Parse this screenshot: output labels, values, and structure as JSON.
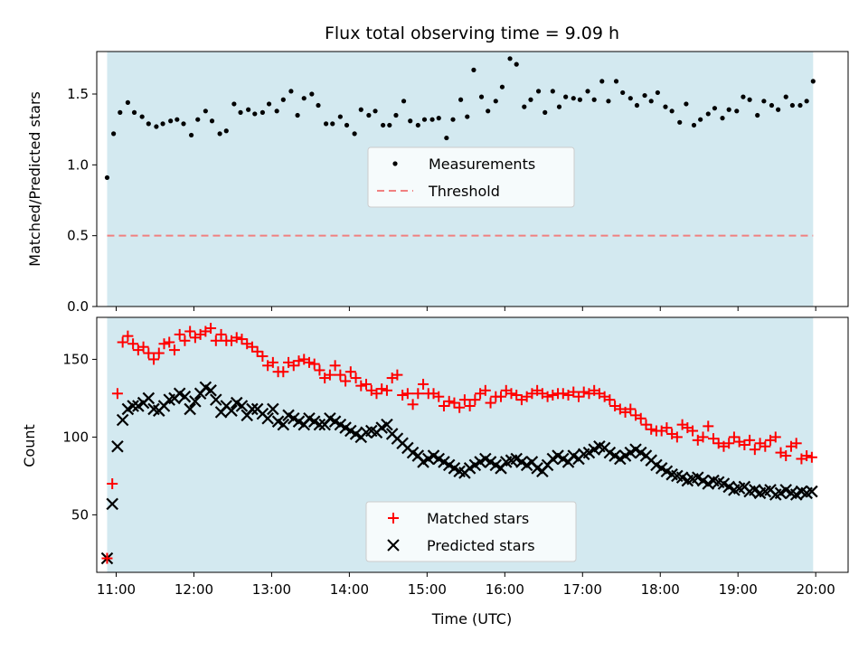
{
  "chart_data": [
    {
      "type": "scatter",
      "title": "Flux total observing time = 9.09 h",
      "ylabel": "Matched/Predicted stars",
      "xlim": [
        "10:45",
        "20:25"
      ],
      "ylim": [
        0,
        1.8
      ],
      "yticks": [
        "0.0",
        "0.5",
        "1.0",
        "1.5"
      ],
      "observing_window": [
        "10:53",
        "19:58"
      ],
      "window_color": "#d3e9f0",
      "legend": {
        "placement": "center",
        "entries": [
          "Measurements",
          "Threshold"
        ]
      },
      "threshold": {
        "name": "Threshold",
        "value": 0.5,
        "color": "#f08080"
      },
      "series": [
        {
          "name": "Measurements",
          "color": "#000000",
          "x": [
            "10:53",
            "10:58",
            "11:03",
            "11:09",
            "11:14",
            "11:20",
            "11:25",
            "11:31",
            "11:36",
            "11:42",
            "11:47",
            "11:52",
            "11:58",
            "12:03",
            "12:09",
            "12:14",
            "12:20",
            "12:25",
            "12:31",
            "12:36",
            "12:42",
            "12:47",
            "12:53",
            "12:58",
            "13:04",
            "13:09",
            "13:15",
            "13:20",
            "13:25",
            "13:31",
            "13:36",
            "13:42",
            "13:47",
            "13:53",
            "13:58",
            "14:04",
            "14:09",
            "14:15",
            "14:20",
            "14:26",
            "14:31",
            "14:36",
            "14:42",
            "14:47",
            "14:53",
            "14:58",
            "15:04",
            "15:09",
            "15:15",
            "15:20",
            "15:26",
            "15:31",
            "15:36",
            "15:42",
            "15:47",
            "15:53",
            "15:58",
            "16:04",
            "16:09",
            "16:15",
            "16:20",
            "16:26",
            "16:31",
            "16:37",
            "16:42",
            "16:47",
            "16:53",
            "16:58",
            "17:04",
            "17:09",
            "17:15",
            "17:20",
            "17:26",
            "17:31",
            "17:37",
            "17:42",
            "17:48",
            "17:53",
            "17:58",
            "18:04",
            "18:09",
            "18:15",
            "18:20",
            "18:26",
            "18:31",
            "18:37",
            "18:42",
            "18:48",
            "18:53",
            "18:59",
            "19:04",
            "19:09",
            "19:15",
            "19:20",
            "19:26",
            "19:31",
            "19:37",
            "19:42",
            "19:48",
            "19:53",
            "19:58"
          ],
          "y": [
            0.91,
            1.22,
            1.37,
            1.44,
            1.37,
            1.34,
            1.29,
            1.27,
            1.29,
            1.31,
            1.32,
            1.29,
            1.21,
            1.32,
            1.38,
            1.31,
            1.22,
            1.24,
            1.43,
            1.37,
            1.39,
            1.36,
            1.37,
            1.43,
            1.38,
            1.46,
            1.52,
            1.35,
            1.47,
            1.5,
            1.42,
            1.29,
            1.29,
            1.34,
            1.28,
            1.22,
            1.39,
            1.35,
            1.38,
            1.28,
            1.28,
            1.35,
            1.45,
            1.31,
            1.28,
            1.32,
            1.32,
            1.33,
            1.19,
            1.32,
            1.46,
            1.34,
            1.67,
            1.48,
            1.38,
            1.45,
            1.55,
            1.75,
            1.71,
            1.41,
            1.46,
            1.52,
            1.37,
            1.52,
            1.41,
            1.48,
            1.47,
            1.46,
            1.52,
            1.46,
            1.59,
            1.45,
            1.59,
            1.51,
            1.47,
            1.42,
            1.49,
            1.45,
            1.51,
            1.41,
            1.38,
            1.3,
            1.43,
            1.28,
            1.32,
            1.36,
            1.4,
            1.33,
            1.39,
            1.38,
            1.48,
            1.46,
            1.35,
            1.45,
            1.42,
            1.39,
            1.48,
            1.42,
            1.42,
            1.45,
            1.59
          ]
        }
      ]
    },
    {
      "type": "scatter",
      "xlabel": "Time (UTC)",
      "ylabel": "Count",
      "xlim": [
        "10:45",
        "20:25"
      ],
      "ylim": [
        13,
        177
      ],
      "yticks": [
        "50",
        "100",
        "150"
      ],
      "xticks": [
        "11:00",
        "12:00",
        "13:00",
        "14:00",
        "15:00",
        "16:00",
        "17:00",
        "18:00",
        "19:00",
        "20:00"
      ],
      "observing_window": [
        "10:53",
        "19:58"
      ],
      "window_color": "#d3e9f0",
      "legend": {
        "placement": "lower center",
        "entries": [
          "Matched stars",
          "Predicted stars"
        ]
      },
      "series": [
        {
          "name": "Matched stars",
          "marker": "+",
          "color": "#ff0000",
          "x": [
            "10:53",
            "10:57",
            "11:01",
            "11:05",
            "11:09",
            "11:13",
            "11:17",
            "11:21",
            "11:25",
            "11:29",
            "11:33",
            "11:37",
            "11:41",
            "11:45",
            "11:49",
            "11:53",
            "11:57",
            "12:01",
            "12:05",
            "12:09",
            "12:13",
            "12:17",
            "12:21",
            "12:25",
            "12:29",
            "12:33",
            "12:37",
            "12:41",
            "12:45",
            "12:49",
            "12:53",
            "12:57",
            "13:01",
            "13:05",
            "13:09",
            "13:13",
            "13:17",
            "13:21",
            "13:25",
            "13:29",
            "13:33",
            "13:37",
            "13:41",
            "13:45",
            "13:49",
            "13:53",
            "13:57",
            "14:01",
            "14:05",
            "14:09",
            "14:13",
            "14:17",
            "14:21",
            "14:25",
            "14:29",
            "14:33",
            "14:37",
            "14:41",
            "14:45",
            "14:49",
            "14:53",
            "14:57",
            "15:01",
            "15:05",
            "15:09",
            "15:13",
            "15:17",
            "15:21",
            "15:25",
            "15:29",
            "15:33",
            "15:37",
            "15:41",
            "15:45",
            "15:49",
            "15:53",
            "15:57",
            "16:01",
            "16:05",
            "16:09",
            "16:13",
            "16:17",
            "16:21",
            "16:25",
            "16:29",
            "16:33",
            "16:37",
            "16:41",
            "16:45",
            "16:49",
            "16:53",
            "16:57",
            "17:01",
            "17:05",
            "17:09",
            "17:13",
            "17:17",
            "17:21",
            "17:25",
            "17:29",
            "17:33",
            "17:37",
            "17:41",
            "17:45",
            "17:49",
            "17:53",
            "17:57",
            "18:01",
            "18:05",
            "18:09",
            "18:13",
            "18:17",
            "18:21",
            "18:25",
            "18:29",
            "18:33",
            "18:37",
            "18:41",
            "18:45",
            "18:49",
            "18:53",
            "18:57",
            "19:01",
            "19:05",
            "19:09",
            "19:13",
            "19:17",
            "19:21",
            "19:25",
            "19:29",
            "19:33",
            "19:37",
            "19:41",
            "19:45",
            "19:49",
            "19:53",
            "19:57"
          ],
          "y": [
            22,
            70,
            128,
            161,
            165,
            160,
            156,
            158,
            154,
            150,
            154,
            160,
            161,
            156,
            166,
            162,
            168,
            164,
            166,
            168,
            170,
            162,
            166,
            162,
            162,
            164,
            163,
            160,
            158,
            155,
            152,
            146,
            148,
            142,
            142,
            148,
            146,
            149,
            150,
            148,
            147,
            143,
            138,
            140,
            146,
            140,
            136,
            142,
            138,
            133,
            134,
            130,
            128,
            131,
            130,
            138,
            140,
            127,
            128,
            121,
            128,
            134,
            128,
            128,
            126,
            120,
            123,
            122,
            119,
            124,
            120,
            124,
            128,
            130,
            122,
            126,
            126,
            130,
            128,
            127,
            124,
            126,
            128,
            130,
            128,
            126,
            127,
            128,
            128,
            127,
            129,
            126,
            129,
            128,
            130,
            128,
            126,
            124,
            120,
            118,
            116,
            118,
            114,
            112,
            108,
            105,
            104,
            104,
            106,
            102,
            100,
            108,
            106,
            104,
            98,
            100,
            107,
            99,
            96,
            94,
            96,
            100,
            97,
            95,
            98,
            92,
            96,
            94,
            98,
            100,
            90,
            88,
            94,
            96,
            86,
            88,
            87
          ]
        },
        {
          "name": "Predicted stars",
          "marker": "x",
          "color": "#000000",
          "x": [
            "10:53",
            "10:57",
            "11:01",
            "11:05",
            "11:09",
            "11:13",
            "11:17",
            "11:21",
            "11:25",
            "11:29",
            "11:33",
            "11:37",
            "11:41",
            "11:45",
            "11:49",
            "11:53",
            "11:57",
            "12:01",
            "12:05",
            "12:09",
            "12:13",
            "12:17",
            "12:21",
            "12:25",
            "12:29",
            "12:33",
            "12:37",
            "12:41",
            "12:45",
            "12:49",
            "12:53",
            "12:57",
            "13:01",
            "13:05",
            "13:09",
            "13:13",
            "13:17",
            "13:21",
            "13:25",
            "13:29",
            "13:33",
            "13:37",
            "13:41",
            "13:45",
            "13:49",
            "13:53",
            "13:57",
            "14:01",
            "14:05",
            "14:09",
            "14:13",
            "14:17",
            "14:21",
            "14:25",
            "14:29",
            "14:33",
            "14:37",
            "14:41",
            "14:45",
            "14:49",
            "14:53",
            "14:57",
            "15:01",
            "15:05",
            "15:09",
            "15:13",
            "15:17",
            "15:21",
            "15:25",
            "15:29",
            "15:33",
            "15:37",
            "15:41",
            "15:45",
            "15:49",
            "15:53",
            "15:57",
            "16:01",
            "16:05",
            "16:09",
            "16:13",
            "16:17",
            "16:21",
            "16:25",
            "16:29",
            "16:33",
            "16:37",
            "16:41",
            "16:45",
            "16:49",
            "16:53",
            "16:57",
            "17:01",
            "17:05",
            "17:09",
            "17:13",
            "17:17",
            "17:21",
            "17:25",
            "17:29",
            "17:33",
            "17:37",
            "17:41",
            "17:45",
            "17:49",
            "17:53",
            "17:57",
            "18:01",
            "18:05",
            "18:09",
            "18:13",
            "18:17",
            "18:21",
            "18:25",
            "18:29",
            "18:33",
            "18:37",
            "18:41",
            "18:45",
            "18:49",
            "18:53",
            "18:57",
            "19:01",
            "19:05",
            "19:09",
            "19:13",
            "19:17",
            "19:21",
            "19:25",
            "19:29",
            "19:33",
            "19:37",
            "19:41",
            "19:45",
            "19:49",
            "19:53",
            "19:57"
          ],
          "y": [
            22,
            57,
            94,
            111,
            118,
            120,
            120,
            122,
            125,
            118,
            117,
            120,
            124,
            125,
            128,
            126,
            118,
            123,
            128,
            132,
            130,
            124,
            116,
            120,
            117,
            122,
            120,
            114,
            118,
            118,
            115,
            112,
            118,
            110,
            108,
            114,
            112,
            110,
            108,
            112,
            110,
            108,
            108,
            112,
            110,
            108,
            106,
            104,
            102,
            100,
            103,
            104,
            103,
            106,
            108,
            102,
            99,
            96,
            93,
            90,
            88,
            84,
            86,
            88,
            86,
            84,
            82,
            80,
            78,
            77,
            80,
            82,
            84,
            86,
            84,
            82,
            80,
            84,
            85,
            86,
            84,
            82,
            84,
            80,
            78,
            82,
            86,
            88,
            86,
            84,
            88,
            86,
            89,
            90,
            92,
            94,
            93,
            90,
            88,
            86,
            88,
            90,
            92,
            90,
            88,
            85,
            82,
            80,
            78,
            76,
            75,
            74,
            72,
            73,
            74,
            72,
            70,
            72,
            71,
            70,
            68,
            66,
            67,
            68,
            65,
            66,
            64,
            65,
            66,
            63,
            64,
            66,
            64,
            63,
            65,
            64,
            65
          ]
        }
      ]
    }
  ]
}
